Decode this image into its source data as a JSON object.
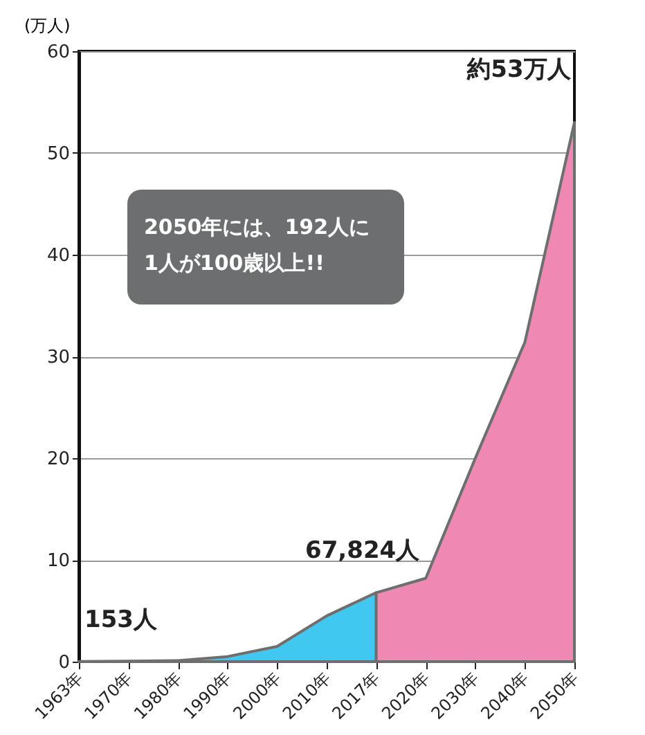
{
  "chart_data": {
    "type": "area",
    "ylabel": "(万人)",
    "categories": [
      "1963年",
      "1970年",
      "1980年",
      "1990年",
      "2000年",
      "2010年",
      "2017年",
      "2020年",
      "2030年",
      "2040年",
      "2050年"
    ],
    "series": [
      {
        "color": "#40c8f0",
        "values": [
          0.0153,
          0.05,
          0.1,
          0.5,
          1.5,
          4.5,
          6.7824,
          null,
          null,
          null,
          null
        ]
      },
      {
        "color": "#f088b4",
        "values": [
          null,
          null,
          null,
          null,
          null,
          null,
          6.7824,
          8.2,
          20,
          31.4,
          53
        ]
      }
    ],
    "ylim": [
      0,
      60
    ],
    "yticks": [
      0,
      10,
      20,
      30,
      40,
      50,
      60
    ],
    "grid": "y",
    "annotations": [
      {
        "text": "153人",
        "x": "1963年",
        "y": 0.0153
      },
      {
        "text": "67,824人",
        "x": "2017年",
        "y": 6.7824
      },
      {
        "text": "約53万人",
        "x": "2050年",
        "y": 53
      },
      "2050年には、192人に\n1人が100歳以上!!"
    ]
  }
}
